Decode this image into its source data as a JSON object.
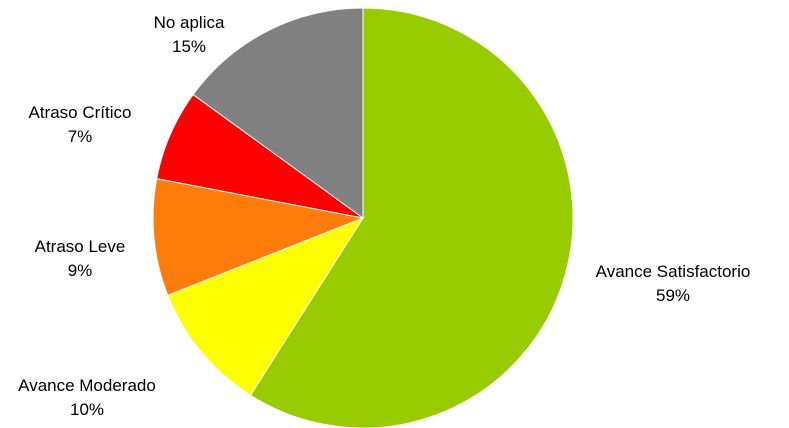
{
  "chart_data": {
    "type": "pie",
    "title": "",
    "slices": [
      {
        "label": "Avance Satisfactorio",
        "value": 59,
        "value_label": "59%",
        "color": "#99cc00"
      },
      {
        "label": "Avance Moderado",
        "value": 10,
        "value_label": "10%",
        "color": "#ffff00"
      },
      {
        "label": "Atraso Leve",
        "value": 9,
        "value_label": "9%",
        "color": "#ff7c0a"
      },
      {
        "label": "Atraso Crítico",
        "value": 7,
        "value_label": "7%",
        "color": "#ff0000"
      },
      {
        "label": "No aplica",
        "value": 15,
        "value_label": "15%",
        "color": "#808080"
      }
    ],
    "start": "12 o'clock",
    "direction": "clockwise",
    "legend": "none"
  }
}
